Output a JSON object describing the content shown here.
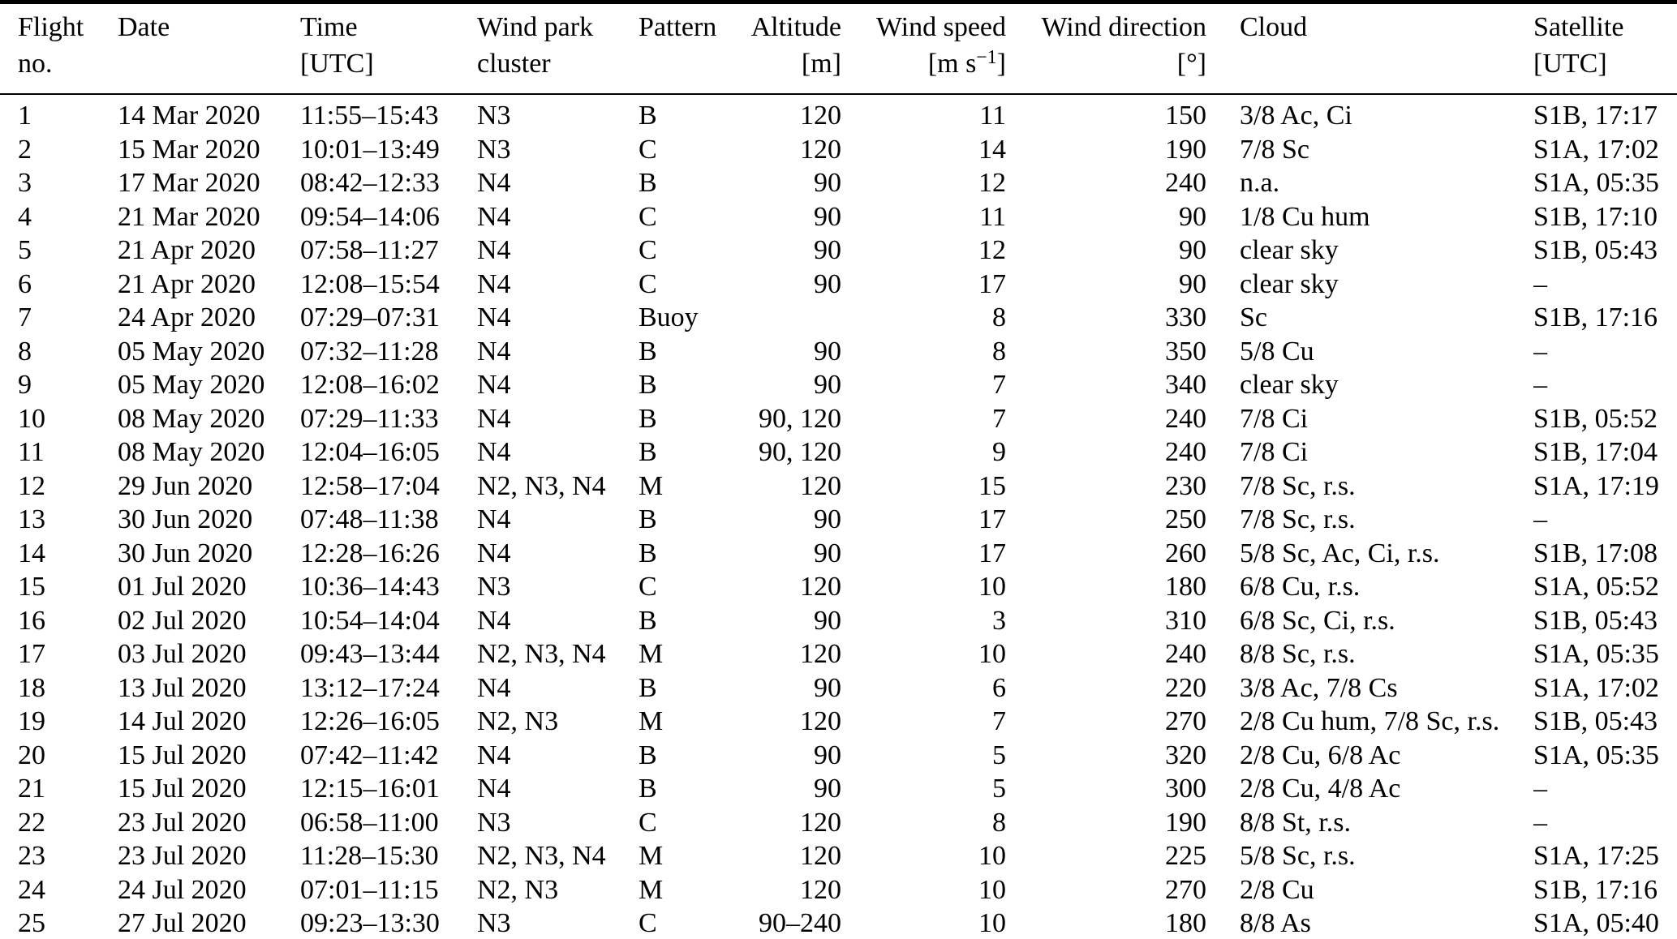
{
  "table": {
    "header": {
      "flight": {
        "l1": "Flight",
        "l2": "no."
      },
      "date": {
        "l1": "Date",
        "l2": ""
      },
      "time": {
        "l1": "Time",
        "l2": "[UTC]"
      },
      "cluster": {
        "l1": "Wind park",
        "l2": "cluster"
      },
      "pattern": {
        "l1": "Pattern",
        "l2": ""
      },
      "altitude": {
        "l1": "Altitude",
        "l2": "[m]"
      },
      "wind_speed": {
        "l1": "Wind speed",
        "l2_base": "[m s",
        "l2_sup": "−1",
        "l2_close": "]"
      },
      "wind_direction": {
        "l1": "Wind direction",
        "l2": "[°]"
      },
      "cloud": {
        "l1": "Cloud",
        "l2": ""
      },
      "satellite": {
        "l1": "Satellite",
        "l2": "[UTC]"
      }
    },
    "rows": [
      {
        "flight_no": "1",
        "date": "14 Mar 2020",
        "time": "11:55–15:43",
        "cluster": "N3",
        "pattern": "B",
        "altitude": "120",
        "wind_speed": "11",
        "wind_direction": "150",
        "cloud": "3/8 Ac, Ci",
        "satellite": "S1B, 17:17"
      },
      {
        "flight_no": "2",
        "date": "15 Mar 2020",
        "time": "10:01–13:49",
        "cluster": "N3",
        "pattern": "C",
        "altitude": "120",
        "wind_speed": "14",
        "wind_direction": "190",
        "cloud": "7/8 Sc",
        "satellite": "S1A, 17:02"
      },
      {
        "flight_no": "3",
        "date": "17 Mar 2020",
        "time": "08:42–12:33",
        "cluster": "N4",
        "pattern": "B",
        "altitude": "90",
        "wind_speed": "12",
        "wind_direction": "240",
        "cloud": "n.a.",
        "satellite": "S1A, 05:35"
      },
      {
        "flight_no": "4",
        "date": "21 Mar 2020",
        "time": "09:54–14:06",
        "cluster": "N4",
        "pattern": "C",
        "altitude": "90",
        "wind_speed": "11",
        "wind_direction": "90",
        "cloud": "1/8 Cu hum",
        "satellite": "S1B, 17:10"
      },
      {
        "flight_no": "5",
        "date": "21 Apr 2020",
        "time": "07:58–11:27",
        "cluster": "N4",
        "pattern": "C",
        "altitude": "90",
        "wind_speed": "12",
        "wind_direction": "90",
        "cloud": "clear sky",
        "satellite": "S1B, 05:43"
      },
      {
        "flight_no": "6",
        "date": "21 Apr 2020",
        "time": "12:08–15:54",
        "cluster": "N4",
        "pattern": "C",
        "altitude": "90",
        "wind_speed": "17",
        "wind_direction": "90",
        "cloud": "clear sky",
        "satellite": "–"
      },
      {
        "flight_no": "7",
        "date": "24 Apr 2020",
        "time": "07:29–07:31",
        "cluster": "N4",
        "pattern": "Buoy",
        "altitude": "",
        "wind_speed": "8",
        "wind_direction": "330",
        "cloud": "Sc",
        "satellite": "S1B, 17:16"
      },
      {
        "flight_no": "8",
        "date": "05 May 2020",
        "time": "07:32–11:28",
        "cluster": "N4",
        "pattern": "B",
        "altitude": "90",
        "wind_speed": "8",
        "wind_direction": "350",
        "cloud": "5/8 Cu",
        "satellite": "–"
      },
      {
        "flight_no": "9",
        "date": "05 May 2020",
        "time": "12:08–16:02",
        "cluster": "N4",
        "pattern": "B",
        "altitude": "90",
        "wind_speed": "7",
        "wind_direction": "340",
        "cloud": "clear sky",
        "satellite": "–"
      },
      {
        "flight_no": "10",
        "date": "08 May 2020",
        "time": "07:29–11:33",
        "cluster": "N4",
        "pattern": "B",
        "altitude": "90, 120",
        "wind_speed": "7",
        "wind_direction": "240",
        "cloud": "7/8 Ci",
        "satellite": "S1B, 05:52"
      },
      {
        "flight_no": "11",
        "date": "08 May 2020",
        "time": "12:04–16:05",
        "cluster": "N4",
        "pattern": "B",
        "altitude": "90, 120",
        "wind_speed": "9",
        "wind_direction": "240",
        "cloud": "7/8 Ci",
        "satellite": "S1B, 17:04"
      },
      {
        "flight_no": "12",
        "date": "29 Jun 2020",
        "time": "12:58–17:04",
        "cluster": "N2, N3, N4",
        "pattern": "M",
        "altitude": "120",
        "wind_speed": "15",
        "wind_direction": "230",
        "cloud": "7/8 Sc, r.s.",
        "satellite": "S1A, 17:19"
      },
      {
        "flight_no": "13",
        "date": "30 Jun 2020",
        "time": "07:48–11:38",
        "cluster": "N4",
        "pattern": "B",
        "altitude": "90",
        "wind_speed": "17",
        "wind_direction": "250",
        "cloud": "7/8 Sc, r.s.",
        "satellite": "–"
      },
      {
        "flight_no": "14",
        "date": "30 Jun 2020",
        "time": "12:28–16:26",
        "cluster": "N4",
        "pattern": "B",
        "altitude": "90",
        "wind_speed": "17",
        "wind_direction": "260",
        "cloud": "5/8 Sc, Ac, Ci, r.s.",
        "satellite": "S1B, 17:08"
      },
      {
        "flight_no": "15",
        "date": "01 Jul 2020",
        "time": "10:36–14:43",
        "cluster": "N3",
        "pattern": "C",
        "altitude": "120",
        "wind_speed": "10",
        "wind_direction": "180",
        "cloud": "6/8 Cu, r.s.",
        "satellite": "S1A, 05:52"
      },
      {
        "flight_no": "16",
        "date": "02 Jul 2020",
        "time": "10:54–14:04",
        "cluster": "N4",
        "pattern": "B",
        "altitude": "90",
        "wind_speed": "3",
        "wind_direction": "310",
        "cloud": "6/8 Sc, Ci, r.s.",
        "satellite": "S1B, 05:43"
      },
      {
        "flight_no": "17",
        "date": "03 Jul 2020",
        "time": "09:43–13:44",
        "cluster": "N2, N3, N4",
        "pattern": "M",
        "altitude": "120",
        "wind_speed": "10",
        "wind_direction": "240",
        "cloud": "8/8 Sc, r.s.",
        "satellite": "S1A, 05:35"
      },
      {
        "flight_no": "18",
        "date": "13 Jul 2020",
        "time": "13:12–17:24",
        "cluster": "N4",
        "pattern": "B",
        "altitude": "90",
        "wind_speed": "6",
        "wind_direction": "220",
        "cloud": "3/8 Ac, 7/8 Cs",
        "satellite": "S1A, 17:02"
      },
      {
        "flight_no": "19",
        "date": "14 Jul 2020",
        "time": "12:26–16:05",
        "cluster": "N2, N3",
        "pattern": "M",
        "altitude": "120",
        "wind_speed": "7",
        "wind_direction": "270",
        "cloud": "2/8 Cu hum, 7/8 Sc, r.s.",
        "satellite": "S1B, 05:43"
      },
      {
        "flight_no": "20",
        "date": "15 Jul 2020",
        "time": "07:42–11:42",
        "cluster": "N4",
        "pattern": "B",
        "altitude": "90",
        "wind_speed": "5",
        "wind_direction": "320",
        "cloud": "2/8 Cu, 6/8 Ac",
        "satellite": "S1A, 05:35"
      },
      {
        "flight_no": "21",
        "date": "15 Jul 2020",
        "time": "12:15–16:01",
        "cluster": "N4",
        "pattern": "B",
        "altitude": "90",
        "wind_speed": "5",
        "wind_direction": "300",
        "cloud": "2/8 Cu, 4/8 Ac",
        "satellite": "–"
      },
      {
        "flight_no": "22",
        "date": "23 Jul 2020",
        "time": "06:58–11:00",
        "cluster": "N3",
        "pattern": "C",
        "altitude": "120",
        "wind_speed": "8",
        "wind_direction": "190",
        "cloud": "8/8 St, r.s.",
        "satellite": "–"
      },
      {
        "flight_no": "23",
        "date": "23 Jul 2020",
        "time": "11:28–15:30",
        "cluster": "N2, N3, N4",
        "pattern": "M",
        "altitude": "120",
        "wind_speed": "10",
        "wind_direction": "225",
        "cloud": "5/8 Sc, r.s.",
        "satellite": "S1A, 17:25"
      },
      {
        "flight_no": "24",
        "date": "24 Jul 2020",
        "time": "07:01–11:15",
        "cluster": "N2, N3",
        "pattern": "M",
        "altitude": "120",
        "wind_speed": "10",
        "wind_direction": "270",
        "cloud": "2/8 Cu",
        "satellite": "S1B, 17:16"
      },
      {
        "flight_no": "25",
        "date": "27 Jul 2020",
        "time": "09:23–13:30",
        "cluster": "N3",
        "pattern": "C",
        "altitude": "90–240",
        "wind_speed": "10",
        "wind_direction": "180",
        "cloud": "8/8 As",
        "satellite": "S1A, 05:40"
      }
    ]
  }
}
